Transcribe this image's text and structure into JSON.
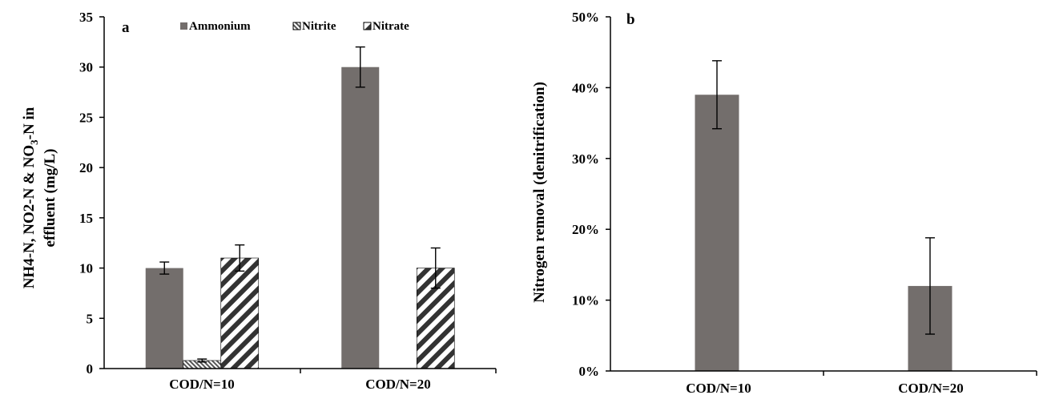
{
  "colors": {
    "bar": "#736e6c",
    "axis": "#000000",
    "stripe": "#333333"
  },
  "chart_data": [
    {
      "type": "bar",
      "panel": "a",
      "categories": [
        "COD/N=10",
        "COD/N=20"
      ],
      "ylabel": {
        "line1_pre": "NH4-N, NO2-N & NO",
        "line1_sub": "3",
        "line1_post": "-N in",
        "line2": "effluent  (mg/L)"
      },
      "ylim": [
        0,
        35
      ],
      "yticks": [
        "0",
        "5",
        "10",
        "15",
        "20",
        "25",
        "30",
        "35"
      ],
      "legend_position": "top",
      "series": [
        {
          "name": "Ammonium",
          "pattern": "solid",
          "values": [
            10,
            30
          ],
          "errors": [
            0.6,
            2.0
          ]
        },
        {
          "name": "Nitrite",
          "pattern": "hatch",
          "values": [
            0.8,
            null
          ],
          "errors": [
            0.15,
            null
          ]
        },
        {
          "name": "Nitrate",
          "pattern": "diagonal",
          "values": [
            11,
            10
          ],
          "errors": [
            1.3,
            2.0
          ]
        }
      ]
    },
    {
      "type": "bar",
      "panel": "b",
      "categories": [
        "COD/N=10",
        "COD/N=20"
      ],
      "ylabel": "Nitrogen removal (denitrification)",
      "ylim": [
        0,
        50
      ],
      "yticks": [
        "0%",
        "10%",
        "20%",
        "30%",
        "40%",
        "50%"
      ],
      "values": [
        39,
        12
      ],
      "errors": [
        4.8,
        6.8
      ]
    }
  ]
}
